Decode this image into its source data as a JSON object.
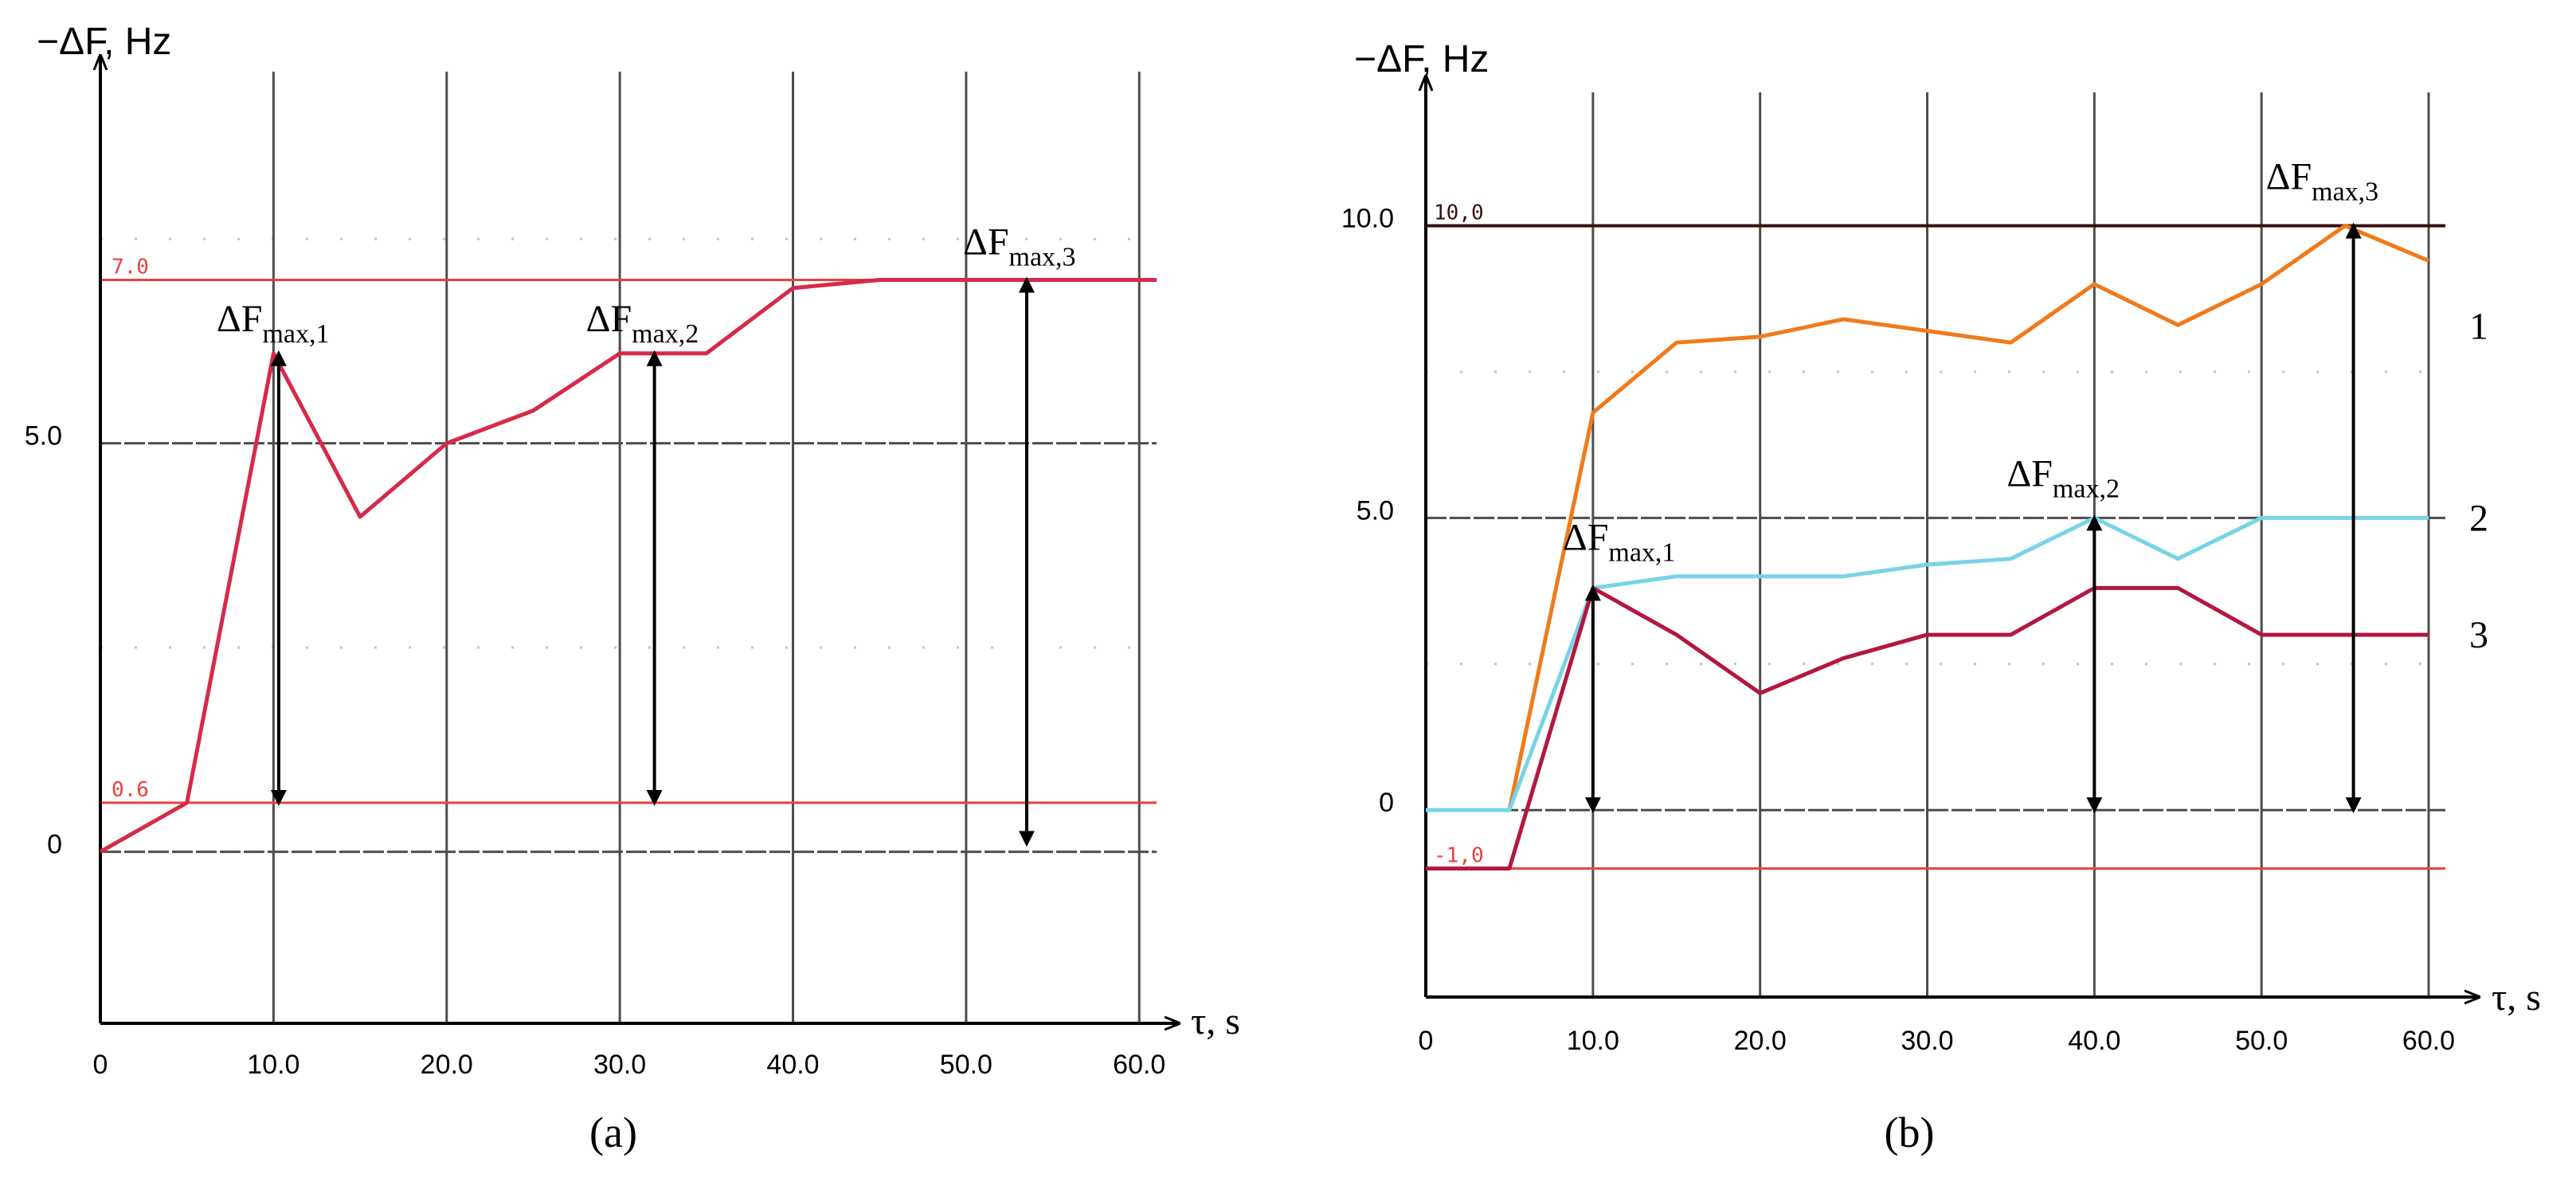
{
  "chart_data": [
    {
      "panel": "(a)",
      "type": "line",
      "ylabel": "−ΔF, Hz",
      "xlabel": "τ, s",
      "xlim": [
        0,
        61
      ],
      "ylim": [
        -2.1,
        9.5
      ],
      "xticks": [
        0,
        10,
        20,
        30,
        40,
        50,
        60
      ],
      "xtick_labels": [
        "0",
        "10.0",
        "20.0",
        "30.0",
        "40.0",
        "50.0",
        "60.0"
      ],
      "ytick_values": [
        0,
        5
      ],
      "ytick_labels": [
        "0",
        "5.0"
      ],
      "gridlines_y": [
        0,
        5
      ],
      "dotted_y": [
        2.5,
        7.5
      ],
      "reference_lines": [
        {
          "y": 7.0,
          "label": "7.0",
          "color": "#e8413c"
        },
        {
          "y": 0.6,
          "label": "0.6",
          "color": "#e8413c"
        }
      ],
      "series": [
        {
          "name": "",
          "color": "#d62a4a",
          "x": [
            0,
            5,
            10,
            15,
            20,
            25,
            30,
            35,
            40,
            45,
            50,
            55,
            61
          ],
          "y": [
            0,
            0.6,
            6.1,
            4.1,
            5.0,
            5.4,
            6.1,
            6.1,
            6.9,
            7.0,
            7.0,
            7.0,
            7.0
          ]
        }
      ],
      "arrows": [
        {
          "x": 10.3,
          "y1": 0.6,
          "y2": 6.1,
          "label": "ΔF",
          "sub": "max,1"
        },
        {
          "x": 32.0,
          "y1": 0.6,
          "y2": 6.1,
          "label": "ΔF",
          "sub": "max,2"
        },
        {
          "x": 53.5,
          "y1": 0.1,
          "y2": 7.0,
          "label": "ΔF",
          "sub": "max,3"
        }
      ]
    },
    {
      "panel": "(b)",
      "type": "line",
      "ylabel": "−ΔF, Hz",
      "xlabel": "τ, s",
      "xlim": [
        0,
        61
      ],
      "ylim": [
        -3.2,
        12.5
      ],
      "xticks": [
        0,
        10,
        20,
        30,
        40,
        50,
        60
      ],
      "xtick_labels": [
        "0",
        "10.0",
        "20.0",
        "30.0",
        "40.0",
        "50.0",
        "60.0"
      ],
      "ytick_values": [
        0,
        5,
        10
      ],
      "ytick_labels": [
        "0",
        "5.0",
        "10.0"
      ],
      "gridlines_y": [
        0,
        5,
        10
      ],
      "dotted_y": [
        2.5,
        7.5
      ],
      "reference_lines": [
        {
          "y": 10.0,
          "label": "10,0",
          "color": "#3a1010"
        },
        {
          "y": -1.0,
          "label": "-1,0",
          "color": "#e8413c"
        }
      ],
      "series": [
        {
          "name": "1",
          "color": "#f07a1a",
          "x": [
            5,
            10,
            15,
            20,
            25,
            30,
            35,
            40,
            45,
            50,
            55,
            60
          ],
          "y": [
            0,
            6.8,
            8.0,
            8.1,
            8.4,
            8.2,
            8.0,
            9.0,
            8.3,
            9.0,
            10.0,
            9.4
          ]
        },
        {
          "name": "2",
          "color": "#79d3e8",
          "x": [
            0,
            5,
            10,
            15,
            20,
            25,
            30,
            35,
            40,
            45,
            50,
            55,
            60
          ],
          "y": [
            0,
            0,
            3.8,
            4.0,
            4.0,
            4.0,
            4.2,
            4.3,
            5.0,
            4.3,
            5.0,
            5.0,
            5.0
          ]
        },
        {
          "name": "3",
          "color": "#b4173e",
          "x": [
            0,
            5,
            10,
            15,
            20,
            25,
            30,
            35,
            40,
            45,
            50,
            55,
            60
          ],
          "y": [
            -1.0,
            -1.0,
            3.8,
            3.0,
            2.0,
            2.6,
            3.0,
            3.0,
            3.8,
            3.8,
            3.0,
            3.0,
            3.0
          ]
        }
      ],
      "arrows": [
        {
          "x": 10.0,
          "y1": 0.0,
          "y2": 3.8,
          "label": "ΔF",
          "sub": "max,1"
        },
        {
          "x": 40.0,
          "y1": 0.0,
          "y2": 5.0,
          "label": "ΔF",
          "sub": "max,2"
        },
        {
          "x": 55.5,
          "y1": 0.0,
          "y2": 10.0,
          "label": "ΔF",
          "sub": "max,3"
        }
      ]
    }
  ]
}
